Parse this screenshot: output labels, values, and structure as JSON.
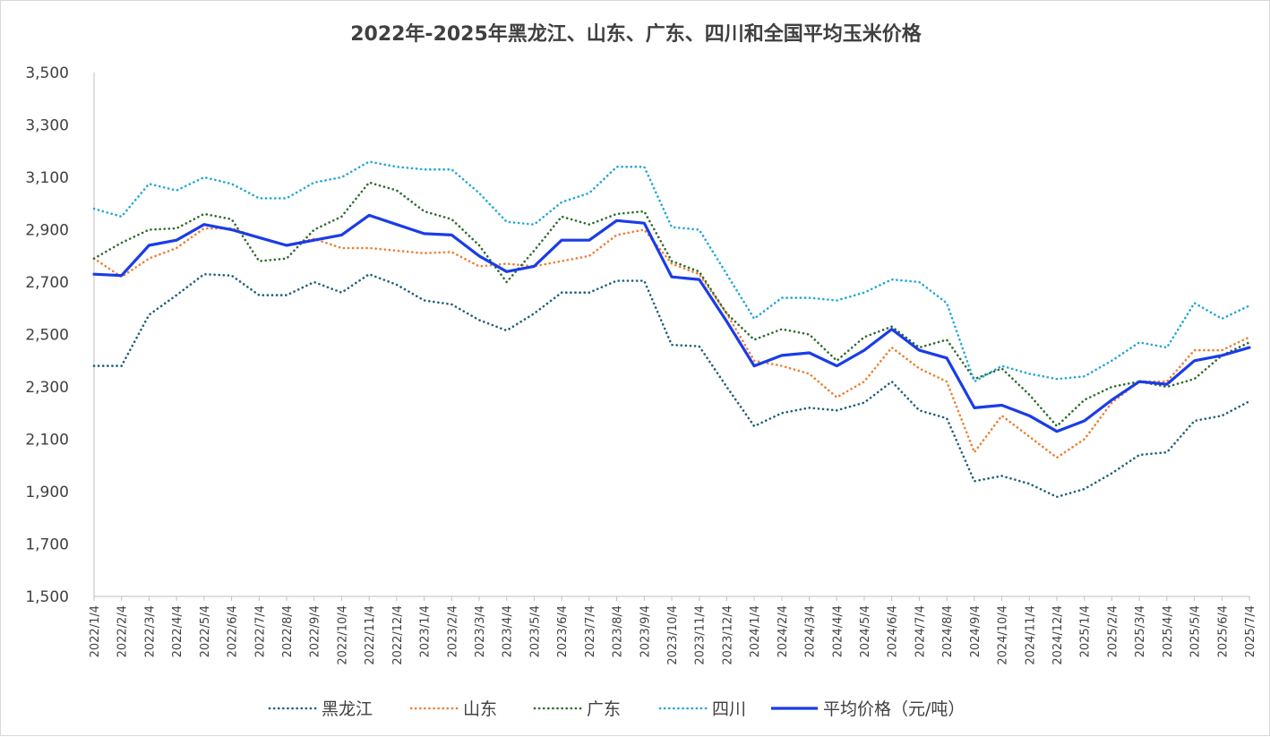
{
  "chart_data": {
    "type": "line",
    "title": "2022年-2025年黑龙江、山东、广东、四川和全国平均玉米价格",
    "xlabel": "",
    "ylabel": "",
    "ylim": [
      1500,
      3500
    ],
    "yticks": [
      "1,500",
      "1,700",
      "1,900",
      "2,100",
      "2,300",
      "2,500",
      "2,700",
      "2,900",
      "3,100",
      "3,300",
      "3,500"
    ],
    "categories": [
      "2022/1/4",
      "2022/2/4",
      "2022/3/4",
      "2022/4/4",
      "2022/5/4",
      "2022/6/4",
      "2022/7/4",
      "2022/8/4",
      "2022/9/4",
      "2022/10/4",
      "2022/11/4",
      "2022/12/4",
      "2023/1/4",
      "2023/2/4",
      "2023/3/4",
      "2023/4/4",
      "2023/5/4",
      "2023/6/4",
      "2023/7/4",
      "2023/8/4",
      "2023/9/4",
      "2023/10/4",
      "2023/11/4",
      "2023/12/4",
      "2024/1/4",
      "2024/2/4",
      "2024/3/4",
      "2024/4/4",
      "2024/5/4",
      "2024/6/4",
      "2024/7/4",
      "2024/8/4",
      "2024/9/4",
      "2024/10/4",
      "2024/11/4",
      "2024/12/4",
      "2025/1/4",
      "2025/2/4",
      "2025/3/4",
      "2025/4/4",
      "2025/5/4",
      "2025/6/4",
      "2025/7/4"
    ],
    "grid": false,
    "legend_position": "bottom",
    "series": [
      {
        "name": "黑龙江",
        "color": "#1f5f7a",
        "style": "dotted",
        "values": [
          2380,
          2380,
          2575,
          2650,
          2730,
          2725,
          2650,
          2650,
          2700,
          2660,
          2730,
          2690,
          2630,
          2615,
          2555,
          2515,
          2580,
          2660,
          2660,
          2705,
          2705,
          2460,
          2455,
          2300,
          2150,
          2200,
          2220,
          2210,
          2240,
          2320,
          2210,
          2180,
          1940,
          1960,
          1930,
          1880,
          1910,
          1970,
          2040,
          2050,
          2170,
          2190,
          2245
        ]
      },
      {
        "name": "山东",
        "color": "#ed7d31",
        "style": "dotted",
        "values": [
          2790,
          2720,
          2790,
          2830,
          2905,
          2905,
          2870,
          2840,
          2865,
          2830,
          2830,
          2820,
          2810,
          2815,
          2760,
          2770,
          2760,
          2780,
          2800,
          2880,
          2900,
          2770,
          2730,
          2580,
          2400,
          2380,
          2350,
          2260,
          2320,
          2450,
          2370,
          2320,
          2050,
          2190,
          2110,
          2030,
          2100,
          2240,
          2320,
          2320,
          2440,
          2440,
          2490
        ]
      },
      {
        "name": "广东",
        "color": "#2e6b2e",
        "style": "dotted",
        "values": [
          2790,
          2850,
          2900,
          2905,
          2960,
          2940,
          2780,
          2790,
          2900,
          2950,
          3080,
          3050,
          2970,
          2940,
          2840,
          2700,
          2820,
          2950,
          2920,
          2960,
          2970,
          2780,
          2740,
          2580,
          2480,
          2520,
          2500,
          2400,
          2490,
          2530,
          2450,
          2480,
          2330,
          2370,
          2270,
          2150,
          2250,
          2300,
          2320,
          2300,
          2330,
          2420,
          2470
        ]
      },
      {
        "name": "四川",
        "color": "#1fa7d8",
        "style": "dotted",
        "values": [
          2980,
          2950,
          3075,
          3050,
          3100,
          3075,
          3020,
          3020,
          3080,
          3100,
          3160,
          3140,
          3130,
          3130,
          3040,
          2930,
          2920,
          3005,
          3040,
          3140,
          3140,
          2910,
          2900,
          2730,
          2560,
          2640,
          2640,
          2630,
          2660,
          2710,
          2700,
          2620,
          2320,
          2380,
          2350,
          2330,
          2340,
          2400,
          2470,
          2450,
          2620,
          2560,
          2610
        ]
      },
      {
        "name": "平均价格（元/吨）",
        "color": "#1a3ce8",
        "style": "solid",
        "values": [
          2730,
          2725,
          2840,
          2860,
          2920,
          2900,
          2870,
          2840,
          2860,
          2880,
          2955,
          2920,
          2885,
          2880,
          2800,
          2740,
          2760,
          2860,
          2860,
          2935,
          2925,
          2720,
          2710,
          2550,
          2380,
          2420,
          2430,
          2380,
          2440,
          2520,
          2440,
          2410,
          2220,
          2230,
          2190,
          2130,
          2170,
          2250,
          2320,
          2310,
          2400,
          2420,
          2450
        ]
      }
    ]
  }
}
